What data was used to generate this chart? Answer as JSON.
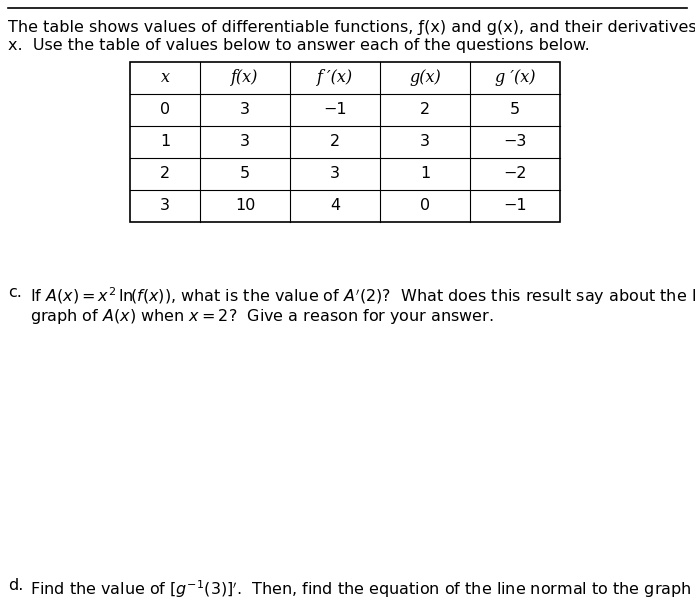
{
  "intro_line1": "The table shows values of differentiable functions, ƒ(x) and g(x), and their derivatives at selected values of",
  "intro_line2": "x.  Use the table of values below to answer each of the questions below.",
  "table_headers": [
    "x",
    "f(x)",
    "f ′(x)",
    "g(x)",
    "g ′(x)"
  ],
  "table_data": [
    [
      "0",
      "3",
      "−1",
      "2",
      "5"
    ],
    [
      "1",
      "3",
      "2",
      "3",
      "−3"
    ],
    [
      "2",
      "5",
      "3",
      "1",
      "−2"
    ],
    [
      "3",
      "10",
      "4",
      "0",
      "−1"
    ]
  ],
  "background_color": "#ffffff",
  "text_color": "#000000"
}
